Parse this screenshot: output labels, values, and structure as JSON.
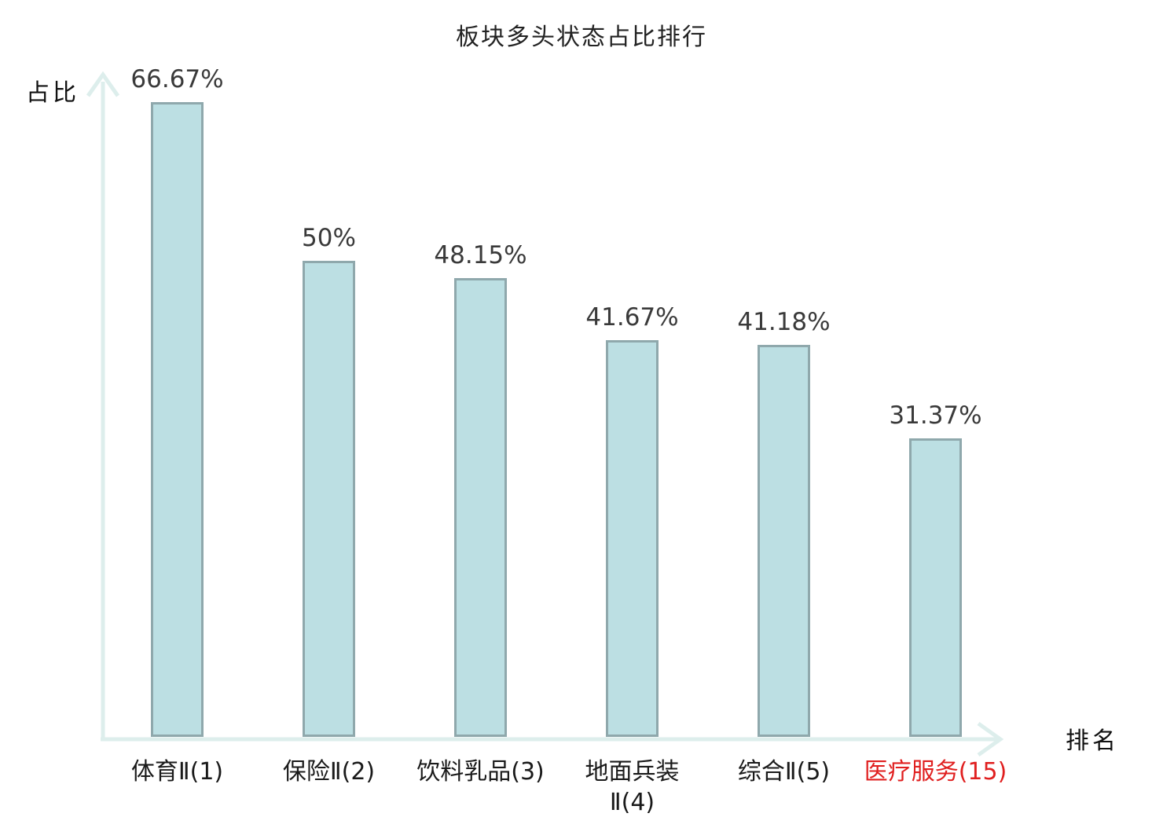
{
  "chart_data": {
    "type": "bar",
    "title": "板块多头状态占比排行",
    "ylabel": "占比",
    "xlabel": "排名",
    "categories": [
      "体育Ⅱ(1)",
      "保险Ⅱ(2)",
      "饮料乳品(3)",
      "地面兵装\nⅡ(4)",
      "综合Ⅱ(5)",
      "医疗服务(15)"
    ],
    "values": [
      66.67,
      50,
      48.15,
      41.67,
      41.18,
      31.37
    ],
    "value_labels": [
      "66.67%",
      "50%",
      "48.15%",
      "41.67%",
      "41.18%",
      "31.37%"
    ],
    "unit": "%",
    "highlight_index": 5,
    "ylim": [
      0,
      70
    ],
    "grid": false,
    "legend": false,
    "colors": {
      "bar_fill": "#bcdfe3",
      "bar_border": "#8fa8ac",
      "axis": "#ddeeec",
      "value_text": "#3a3a3a",
      "category_text": "#1a1a1a",
      "highlight_text": "#e01f1f",
      "title_text": "#222222"
    }
  }
}
